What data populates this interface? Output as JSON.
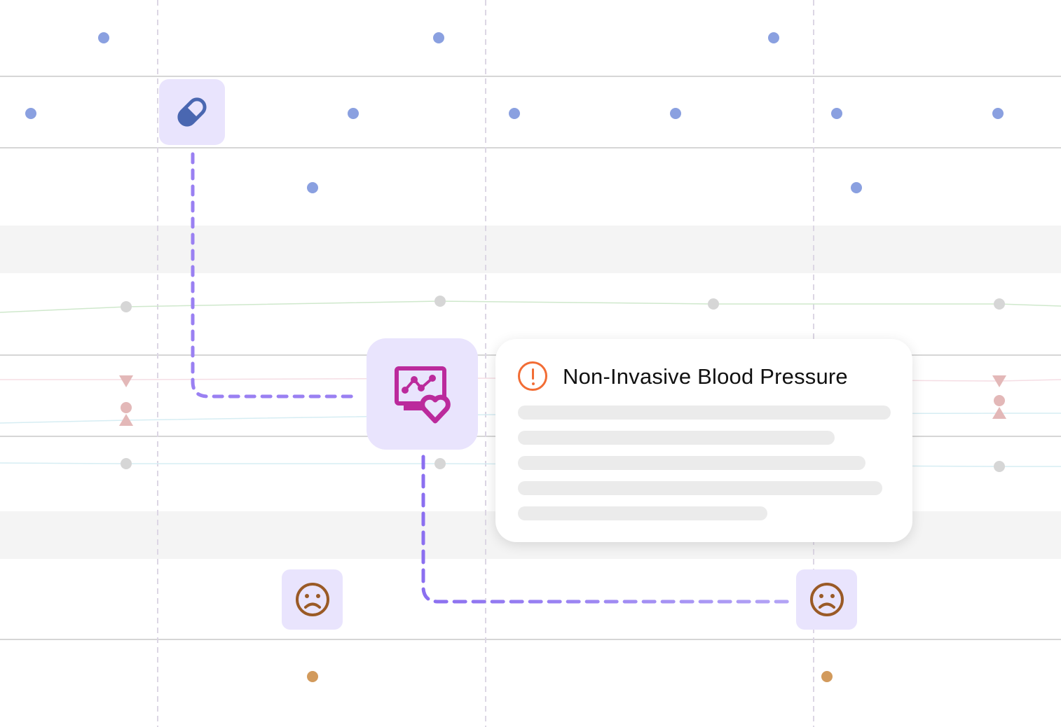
{
  "card": {
    "title": "Non-Invasive Blood Pressure",
    "icon": "alert-circle-icon",
    "skeleton_lines": 5
  },
  "icons": {
    "medication": "pill-icon",
    "monitor": "heart-monitor-icon",
    "mood": "sad-face-icon"
  },
  "colors": {
    "accent": "#8b6ff0",
    "alert": "#f26d35",
    "dots": "#8aa0e0",
    "monitor": "#bb2a9c",
    "pill": "#4a67b1",
    "mood": "#9a5a26"
  }
}
